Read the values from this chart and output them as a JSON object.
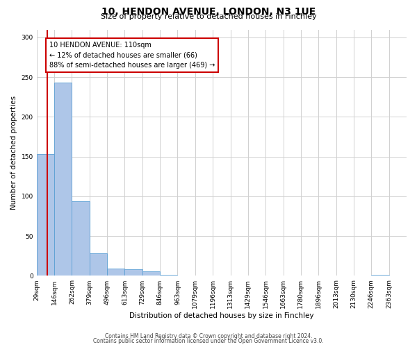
{
  "title": "10, HENDON AVENUE, LONDON, N3 1UE",
  "subtitle": "Size of property relative to detached houses in Finchley",
  "xlabel": "Distribution of detached houses by size in Finchley",
  "ylabel": "Number of detached properties",
  "bar_labels": [
    "29sqm",
    "146sqm",
    "262sqm",
    "379sqm",
    "496sqm",
    "613sqm",
    "729sqm",
    "846sqm",
    "963sqm",
    "1079sqm",
    "1196sqm",
    "1313sqm",
    "1429sqm",
    "1546sqm",
    "1663sqm",
    "1780sqm",
    "1896sqm",
    "2013sqm",
    "2130sqm",
    "2246sqm",
    "2363sqm"
  ],
  "bar_values": [
    153,
    243,
    94,
    28,
    9,
    8,
    6,
    1,
    0,
    0,
    0,
    0,
    0,
    0,
    0,
    0,
    0,
    0,
    0,
    1,
    0
  ],
  "bar_color": "#aec6e8",
  "bar_edge_color": "#5a9fd4",
  "ylim": [
    0,
    310
  ],
  "yticks": [
    0,
    50,
    100,
    150,
    200,
    250,
    300
  ],
  "vline_x": 0.62,
  "vline_color": "#cc0000",
  "annotation_title": "10 HENDON AVENUE: 110sqm",
  "annotation_line1": "← 12% of detached houses are smaller (66)",
  "annotation_line2": "88% of semi-detached houses are larger (469) →",
  "annotation_box_color": "#ffffff",
  "annotation_box_edge": "#cc0000",
  "background_color": "#ffffff",
  "grid_color": "#d0d0d0",
  "footer1": "Contains HM Land Registry data © Crown copyright and database right 2024.",
  "footer2": "Contains public sector information licensed under the Open Government Licence v3.0."
}
